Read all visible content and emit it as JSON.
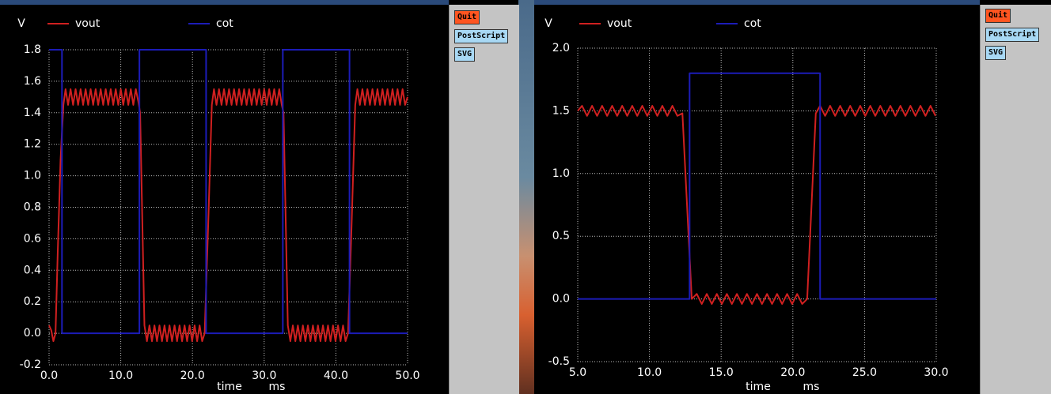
{
  "chart_data": [
    {
      "type": "line",
      "y_label": "V",
      "x_label": "time",
      "x_unit": "ms",
      "xlim": [
        0,
        50
      ],
      "ylim": [
        -0.2,
        1.8
      ],
      "grid": true,
      "xticks": [
        {
          "value": 0,
          "label": "0.0"
        },
        {
          "value": 10,
          "label": "10.0"
        },
        {
          "value": 20,
          "label": "20.0"
        },
        {
          "value": 30,
          "label": "30.0"
        },
        {
          "value": 40,
          "label": "40.0"
        },
        {
          "value": 50,
          "label": "50.0"
        }
      ],
      "yticks": [
        -0.2,
        {
          "value": 0,
          "label": "0.0"
        },
        0.2,
        0.4,
        0.6,
        0.8,
        {
          "value": 1,
          "label": "1.0"
        },
        1.2,
        1.4,
        1.6,
        1.8
      ],
      "series": [
        {
          "name": "vout",
          "color": "#d02020",
          "x": [
            0,
            0.3,
            0.6,
            0.9,
            1.2,
            1.6,
            2.0,
            2.3,
            2.65,
            3.0,
            3.35,
            3.7,
            4.05,
            4.4,
            4.75,
            5.1,
            5.45,
            5.8,
            6.15,
            6.5,
            6.85,
            7.2,
            7.55,
            7.9,
            8.25,
            8.6,
            8.95,
            9.3,
            9.65,
            10.0,
            10.35,
            10.7,
            11.05,
            11.4,
            11.75,
            12.1,
            12.45,
            12.7,
            13.3,
            13.65,
            14.0,
            14.35,
            14.7,
            15.05,
            15.4,
            15.75,
            16.1,
            16.45,
            16.8,
            17.15,
            17.5,
            17.85,
            18.2,
            18.55,
            18.9,
            19.25,
            19.6,
            19.95,
            20.3,
            20.65,
            21.0,
            21.35,
            21.7,
            22.2,
            22.7,
            23.0,
            23.35,
            23.7,
            24.05,
            24.4,
            24.75,
            25.1,
            25.45,
            25.8,
            26.15,
            26.5,
            26.85,
            27.2,
            27.55,
            27.9,
            28.25,
            28.6,
            28.95,
            29.3,
            29.65,
            30.0,
            30.35,
            30.7,
            31.05,
            31.4,
            31.75,
            32.1,
            32.45,
            32.7,
            33.3,
            33.65,
            34.0,
            34.35,
            34.7,
            35.05,
            35.4,
            35.75,
            36.1,
            36.45,
            36.8,
            37.15,
            37.5,
            37.85,
            38.2,
            38.55,
            38.9,
            39.25,
            39.6,
            39.95,
            40.3,
            40.65,
            41.0,
            41.35,
            41.7,
            42.2,
            42.7,
            43.0,
            43.35,
            43.7,
            44.05,
            44.4,
            44.75,
            45.1,
            45.45,
            45.8,
            46.15,
            46.5,
            46.85,
            47.2,
            47.55,
            47.9,
            48.25,
            48.6,
            48.95,
            49.3,
            49.65,
            50.0
          ],
          "values": [
            0.05,
            0.02,
            -0.05,
            0.0,
            0.5,
            1.1,
            1.45,
            1.55,
            1.45,
            1.55,
            1.45,
            1.55,
            1.45,
            1.55,
            1.45,
            1.55,
            1.45,
            1.55,
            1.45,
            1.55,
            1.45,
            1.55,
            1.45,
            1.55,
            1.45,
            1.55,
            1.45,
            1.55,
            1.45,
            1.55,
            1.45,
            1.55,
            1.45,
            1.55,
            1.45,
            1.55,
            1.47,
            1.4,
            0.05,
            -0.05,
            0.05,
            -0.05,
            0.05,
            -0.05,
            0.05,
            -0.05,
            0.05,
            -0.05,
            0.05,
            -0.05,
            0.05,
            -0.05,
            0.05,
            -0.05,
            0.05,
            -0.05,
            0.05,
            -0.05,
            0.05,
            -0.05,
            0.05,
            -0.05,
            0.0,
            0.7,
            1.45,
            1.55,
            1.45,
            1.55,
            1.45,
            1.55,
            1.45,
            1.55,
            1.45,
            1.55,
            1.45,
            1.55,
            1.45,
            1.55,
            1.45,
            1.55,
            1.45,
            1.55,
            1.45,
            1.55,
            1.45,
            1.55,
            1.45,
            1.55,
            1.45,
            1.55,
            1.45,
            1.55,
            1.45,
            1.4,
            0.05,
            -0.05,
            0.05,
            -0.05,
            0.05,
            -0.05,
            0.05,
            -0.05,
            0.05,
            -0.05,
            0.05,
            -0.05,
            0.05,
            -0.05,
            0.05,
            -0.05,
            0.05,
            -0.05,
            0.05,
            -0.05,
            0.05,
            -0.05,
            0.05,
            -0.05,
            0.0,
            0.7,
            1.45,
            1.55,
            1.45,
            1.55,
            1.45,
            1.55,
            1.45,
            1.55,
            1.45,
            1.55,
            1.45,
            1.55,
            1.45,
            1.55,
            1.45,
            1.55,
            1.45,
            1.55,
            1.45,
            1.55,
            1.45,
            1.5
          ]
        },
        {
          "name": "cot",
          "color": "#1c1cb8",
          "x": [
            0,
            1.8,
            1.8,
            12.6,
            12.6,
            21.9,
            21.9,
            32.6,
            32.6,
            41.9,
            41.9,
            50
          ],
          "values": [
            1.8,
            1.8,
            0,
            0,
            1.8,
            1.8,
            0,
            0,
            1.8,
            1.8,
            0,
            0
          ]
        }
      ]
    },
    {
      "type": "line",
      "y_label": "V",
      "x_label": "time",
      "x_unit": "ms",
      "xlim": [
        5,
        30
      ],
      "ylim": [
        -0.5,
        2.0
      ],
      "grid": true,
      "xticks": [
        {
          "value": 5,
          "label": "5.0"
        },
        {
          "value": 10,
          "label": "10.0"
        },
        {
          "value": 15,
          "label": "15.0"
        },
        {
          "value": 20,
          "label": "20.0"
        },
        {
          "value": 25,
          "label": "25.0"
        },
        {
          "value": 30,
          "label": "30.0"
        }
      ],
      "yticks": [
        -0.5,
        {
          "value": 0,
          "label": "0.0"
        },
        0.5,
        {
          "value": 1,
          "label": "1.0"
        },
        1.5,
        {
          "value": 2,
          "label": "2.0"
        }
      ],
      "series": [
        {
          "name": "vout",
          "color": "#d02020",
          "x": [
            5.0,
            5.3,
            5.65,
            6.0,
            6.35,
            6.7,
            7.05,
            7.4,
            7.75,
            8.1,
            8.45,
            8.8,
            9.15,
            9.5,
            9.85,
            10.2,
            10.55,
            10.9,
            11.25,
            11.6,
            11.95,
            12.3,
            12.95,
            13.3,
            13.65,
            14.0,
            14.35,
            14.7,
            15.05,
            15.4,
            15.75,
            16.1,
            16.45,
            16.8,
            17.15,
            17.5,
            17.85,
            18.2,
            18.55,
            18.9,
            19.25,
            19.6,
            19.95,
            20.3,
            20.65,
            21.0,
            21.6,
            21.9,
            22.25,
            22.6,
            22.95,
            23.3,
            23.65,
            24.0,
            24.35,
            24.7,
            25.05,
            25.4,
            25.75,
            26.1,
            26.45,
            26.8,
            27.15,
            27.5,
            27.85,
            28.2,
            28.55,
            28.9,
            29.25,
            29.6,
            29.95
          ],
          "values": [
            1.5,
            1.54,
            1.46,
            1.54,
            1.46,
            1.54,
            1.46,
            1.54,
            1.46,
            1.54,
            1.46,
            1.54,
            1.46,
            1.54,
            1.46,
            1.54,
            1.46,
            1.54,
            1.46,
            1.54,
            1.46,
            1.48,
            0.0,
            0.04,
            -0.04,
            0.04,
            -0.04,
            0.04,
            -0.04,
            0.04,
            -0.04,
            0.04,
            -0.04,
            0.04,
            -0.04,
            0.04,
            -0.04,
            0.04,
            -0.04,
            0.04,
            -0.04,
            0.04,
            -0.04,
            0.04,
            -0.04,
            0.0,
            1.48,
            1.54,
            1.46,
            1.54,
            1.46,
            1.54,
            1.46,
            1.54,
            1.46,
            1.54,
            1.46,
            1.54,
            1.46,
            1.54,
            1.46,
            1.54,
            1.46,
            1.54,
            1.46,
            1.54,
            1.46,
            1.54,
            1.46,
            1.54,
            1.46
          ]
        },
        {
          "name": "cot",
          "color": "#1c1cb8",
          "x": [
            5,
            12.8,
            12.8,
            21.9,
            21.9,
            30
          ],
          "values": [
            0,
            0,
            1.8,
            1.8,
            0,
            0
          ]
        }
      ]
    }
  ],
  "button_panels": [
    [
      "Quit",
      "PostScript",
      "SVG"
    ],
    [
      "Quit",
      "PostScript",
      "SVG"
    ]
  ]
}
